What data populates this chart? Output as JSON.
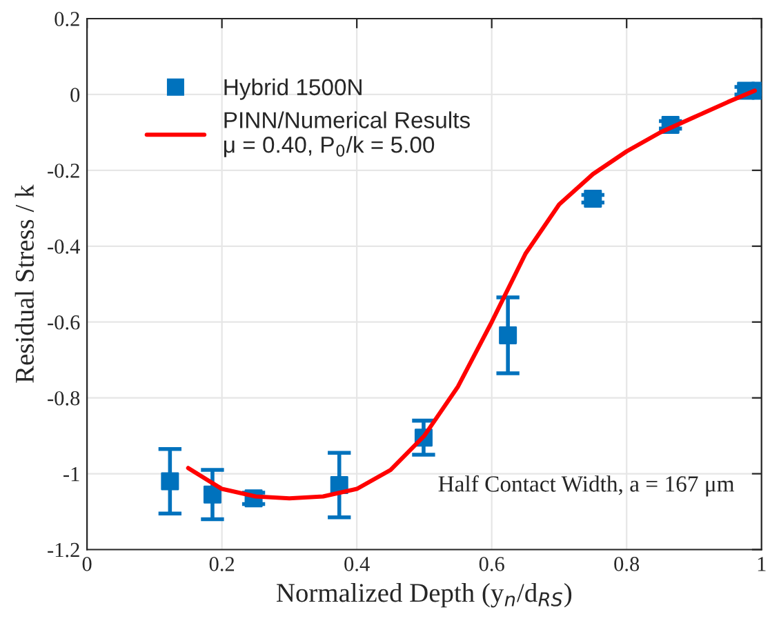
{
  "chart_data": {
    "type": "scatter",
    "xlabel": "Normalized Depth (y$_{n}$/d$_{RS}$)",
    "ylabel": "Residual Stress / k",
    "xlim": [
      0,
      1
    ],
    "ylim": [
      -1.2,
      0.2
    ],
    "xticks": [
      0,
      0.2,
      0.4,
      0.6,
      0.8,
      1
    ],
    "yticks": [
      -1.2,
      -1,
      -0.8,
      -0.6,
      -0.4,
      -0.2,
      0,
      0.2
    ],
    "grid": true,
    "legend": "top left",
    "series": [
      {
        "name": "Hybrid 1500N",
        "color": "#0072bd",
        "marker": "square",
        "x": [
          0.123,
          0.186,
          0.247,
          0.374,
          0.499,
          0.624,
          0.75,
          0.865,
          0.977,
          0.998
        ],
        "values": [
          -1.02,
          -1.055,
          -1.065,
          -1.03,
          -0.905,
          -0.635,
          -0.275,
          -0.08,
          0.01,
          0.01
        ],
        "errors": [
          0.085,
          0.065,
          0.015,
          0.085,
          0.045,
          0.1,
          0.01,
          0.01,
          0.01,
          0.01
        ]
      },
      {
        "name": "PINN/Numerical Results\nμ = 0.40, P$_{0}$/k = 5.00",
        "type": "line",
        "color": "#ff0000",
        "line_style": "solid",
        "marker": "none",
        "x": [
          0.15,
          0.2,
          0.25,
          0.3,
          0.35,
          0.4,
          0.45,
          0.5,
          0.55,
          0.6,
          0.65,
          0.7,
          0.75,
          0.8,
          0.85,
          0.9,
          0.95,
          0.99
        ],
        "values": [
          -0.985,
          -1.04,
          -1.06,
          -1.065,
          -1.06,
          -1.04,
          -0.99,
          -0.9,
          -0.77,
          -0.6,
          -0.42,
          -0.29,
          -0.21,
          -0.15,
          -0.1,
          -0.06,
          -0.02,
          0.01
        ]
      }
    ],
    "annotations": [
      "Half Contact Width, a = 167 μm"
    ]
  }
}
